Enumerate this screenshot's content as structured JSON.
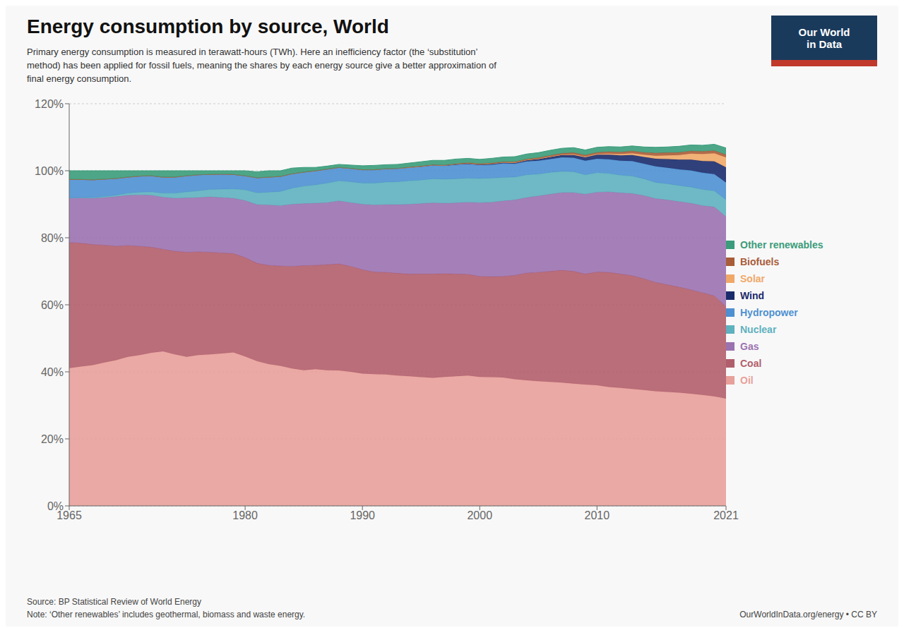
{
  "chart_data": {
    "type": "area",
    "stacked": true,
    "title": "Energy consumption by source, World",
    "subtitle": [
      "Primary energy consumption is measured in terawatt-hours (TWh). Here an inefficiency factor (the ‘substitution’",
      "method) has been applied for fossil fuels, meaning the shares by each energy source give a better approximation of",
      "final energy consumption."
    ],
    "annotations": [
      "Source: BP Statistical Review of World Energy",
      "Note: ‘Other renewables’ includes geothermal, biomass and waste energy.",
      "OurWorldInData.org/energy • CC BY",
      "Our World",
      "in Data"
    ],
    "x": [
      1965,
      1966,
      1967,
      1968,
      1969,
      1970,
      1971,
      1972,
      1973,
      1974,
      1975,
      1976,
      1977,
      1978,
      1979,
      1980,
      1981,
      1982,
      1983,
      1984,
      1985,
      1986,
      1987,
      1988,
      1989,
      1990,
      1991,
      1992,
      1993,
      1994,
      1995,
      1996,
      1997,
      1998,
      1999,
      2000,
      2001,
      2002,
      2003,
      2004,
      2005,
      2006,
      2007,
      2008,
      2009,
      2010,
      2011,
      2012,
      2013,
      2014,
      2015,
      2016,
      2017,
      2018,
      2019,
      2020,
      2021
    ],
    "xlim": [
      1965,
      2021
    ],
    "xticks": [
      1965,
      1980,
      1990,
      2000,
      2010,
      2021
    ],
    "ylim": [
      0,
      120
    ],
    "yticks": [
      {
        "value": 0,
        "label": "0%"
      },
      {
        "value": 20,
        "label": "20%"
      },
      {
        "value": 40,
        "label": "40%"
      },
      {
        "value": 60,
        "label": "60%"
      },
      {
        "value": 80,
        "label": "80%"
      },
      {
        "value": 100,
        "label": "100%"
      },
      {
        "value": 120,
        "label": "120%"
      }
    ],
    "grid": true,
    "legend": "right",
    "series": [
      {
        "name": "Oil",
        "color": "#e8a09a",
        "values": [
          41.1,
          41.6,
          42.0,
          42.8,
          43.5,
          44.5,
          45.0,
          45.7,
          46.1,
          45.2,
          44.5,
          45.0,
          45.2,
          45.5,
          45.8,
          44.6,
          43.2,
          42.3,
          41.8,
          41.0,
          40.5,
          40.8,
          40.5,
          40.4,
          40.0,
          39.5,
          39.3,
          39.2,
          38.9,
          38.7,
          38.4,
          38.2,
          38.5,
          38.7,
          38.9,
          38.5,
          38.4,
          38.3,
          37.8,
          37.5,
          37.2,
          37.0,
          36.8,
          36.5,
          36.2,
          36.0,
          35.5,
          35.2,
          34.9,
          34.6,
          34.2,
          34.0,
          33.8,
          33.5,
          33.1,
          32.7,
          32.0
        ]
      },
      {
        "name": "Coal",
        "color": "#b15e6c",
        "values": [
          37.5,
          36.8,
          36.0,
          35.0,
          34.0,
          33.2,
          32.5,
          31.5,
          30.5,
          30.8,
          31.2,
          30.8,
          30.5,
          30.0,
          29.5,
          29.5,
          29.2,
          29.5,
          29.8,
          30.5,
          31.2,
          31.0,
          31.5,
          31.8,
          31.5,
          31.0,
          30.5,
          30.5,
          30.5,
          30.5,
          30.8,
          31.0,
          30.8,
          30.5,
          30.2,
          30.0,
          30.0,
          30.2,
          31.0,
          32.0,
          32.5,
          33.0,
          33.5,
          33.5,
          33.0,
          33.8,
          34.2,
          34.0,
          33.8,
          33.2,
          32.5,
          32.0,
          31.5,
          31.0,
          30.5,
          30.0,
          27.5
        ]
      },
      {
        "name": "Gas",
        "color": "#9b72b0",
        "values": [
          13.3,
          13.5,
          13.8,
          14.2,
          14.8,
          15.0,
          15.3,
          15.5,
          15.5,
          15.8,
          16.2,
          16.2,
          16.5,
          16.5,
          16.5,
          17.0,
          17.5,
          18.0,
          18.0,
          18.5,
          18.5,
          18.5,
          18.5,
          18.8,
          19.0,
          19.5,
          20.0,
          20.2,
          20.5,
          20.8,
          21.0,
          21.2,
          21.0,
          21.2,
          21.5,
          22.0,
          22.2,
          22.5,
          22.5,
          22.5,
          22.8,
          23.0,
          23.2,
          23.5,
          23.8,
          23.8,
          24.0,
          24.2,
          24.5,
          24.8,
          25.0,
          25.3,
          25.5,
          25.8,
          26.0,
          26.5,
          26.8
        ]
      },
      {
        "name": "Nuclear",
        "color": "#5eb1bf",
        "values": [
          0.0,
          0.1,
          0.2,
          0.3,
          0.4,
          0.6,
          0.8,
          1.0,
          1.2,
          1.5,
          1.8,
          2.0,
          2.2,
          2.5,
          2.8,
          3.2,
          3.5,
          3.8,
          4.2,
          4.8,
          5.2,
          5.5,
          5.8,
          6.0,
          6.2,
          6.3,
          6.5,
          6.7,
          6.8,
          7.0,
          7.0,
          7.2,
          7.2,
          7.2,
          7.2,
          7.2,
          7.2,
          7.0,
          6.8,
          6.8,
          6.5,
          6.5,
          6.3,
          6.2,
          5.8,
          5.8,
          5.5,
          5.3,
          5.2,
          5.0,
          4.8,
          4.8,
          4.8,
          4.8,
          4.8,
          4.8,
          5.0
        ]
      },
      {
        "name": "Hydropower",
        "color": "#4e90d1",
        "values": [
          5.5,
          5.4,
          5.3,
          5.2,
          5.0,
          4.8,
          4.8,
          4.8,
          4.8,
          4.8,
          4.8,
          4.8,
          4.5,
          4.5,
          4.3,
          4.2,
          4.5,
          4.5,
          4.5,
          4.3,
          4.2,
          4.2,
          4.2,
          4.0,
          4.0,
          4.0,
          4.0,
          4.0,
          4.0,
          4.0,
          4.0,
          4.0,
          4.0,
          4.2,
          4.2,
          4.0,
          4.0,
          4.2,
          4.0,
          4.0,
          4.0,
          4.0,
          4.2,
          4.2,
          4.2,
          4.2,
          4.2,
          4.3,
          4.5,
          4.5,
          4.8,
          4.8,
          4.8,
          5.0,
          5.0,
          5.0,
          5.2
        ]
      },
      {
        "name": "Wind",
        "color": "#1a2b6b",
        "values": [
          0.0,
          0.0,
          0.0,
          0.0,
          0.0,
          0.0,
          0.0,
          0.0,
          0.0,
          0.0,
          0.0,
          0.0,
          0.0,
          0.0,
          0.0,
          0.0,
          0.0,
          0.0,
          0.0,
          0.0,
          0.0,
          0.0,
          0.0,
          0.0,
          0.0,
          0.0,
          0.0,
          0.0,
          0.0,
          0.0,
          0.1,
          0.1,
          0.1,
          0.2,
          0.2,
          0.2,
          0.3,
          0.3,
          0.3,
          0.4,
          0.5,
          0.6,
          0.7,
          0.8,
          1.0,
          1.2,
          1.4,
          1.6,
          1.8,
          2.0,
          2.3,
          2.6,
          2.9,
          3.2,
          3.5,
          3.8,
          4.5
        ]
      },
      {
        "name": "Solar",
        "color": "#f0a868",
        "values": [
          0.0,
          0.0,
          0.0,
          0.0,
          0.0,
          0.0,
          0.0,
          0.0,
          0.0,
          0.0,
          0.0,
          0.0,
          0.0,
          0.0,
          0.0,
          0.0,
          0.0,
          0.0,
          0.0,
          0.0,
          0.0,
          0.0,
          0.0,
          0.0,
          0.0,
          0.0,
          0.0,
          0.0,
          0.0,
          0.0,
          0.0,
          0.0,
          0.0,
          0.0,
          0.0,
          0.0,
          0.0,
          0.0,
          0.0,
          0.0,
          0.1,
          0.1,
          0.1,
          0.2,
          0.2,
          0.2,
          0.3,
          0.4,
          0.5,
          0.7,
          0.9,
          1.1,
          1.4,
          1.8,
          2.1,
          2.4,
          3.0
        ]
      },
      {
        "name": "Biofuels",
        "color": "#a85c38",
        "values": [
          0.0,
          0.0,
          0.0,
          0.0,
          0.0,
          0.0,
          0.0,
          0.0,
          0.0,
          0.0,
          0.0,
          0.0,
          0.0,
          0.0,
          0.0,
          0.0,
          0.0,
          0.0,
          0.0,
          0.0,
          0.0,
          0.0,
          0.0,
          0.0,
          0.0,
          0.0,
          0.0,
          0.0,
          0.0,
          0.1,
          0.1,
          0.1,
          0.1,
          0.1,
          0.2,
          0.2,
          0.2,
          0.2,
          0.3,
          0.3,
          0.3,
          0.4,
          0.4,
          0.5,
          0.5,
          0.5,
          0.6,
          0.6,
          0.7,
          0.7,
          0.8,
          0.8,
          0.8,
          0.8,
          0.8,
          0.8,
          0.8
        ]
      },
      {
        "name": "Other renewables",
        "color": "#3a9c7a",
        "values": [
          2.6,
          2.6,
          2.7,
          2.5,
          2.3,
          1.9,
          1.6,
          1.5,
          1.9,
          1.9,
          1.5,
          1.2,
          1.1,
          1.0,
          1.1,
          1.5,
          1.8,
          1.9,
          1.7,
          1.7,
          1.4,
          1.0,
          0.9,
          0.9,
          1.0,
          1.2,
          1.3,
          1.2,
          1.2,
          1.2,
          1.3,
          1.3,
          1.4,
          1.4,
          1.3,
          1.3,
          1.4,
          1.4,
          1.5,
          1.5,
          1.5,
          1.5,
          1.5,
          1.5,
          1.5,
          1.5,
          1.5,
          1.5,
          1.5,
          1.6,
          1.7,
          1.7,
          1.8,
          1.8,
          1.8,
          1.9,
          2.0
        ]
      }
    ]
  }
}
